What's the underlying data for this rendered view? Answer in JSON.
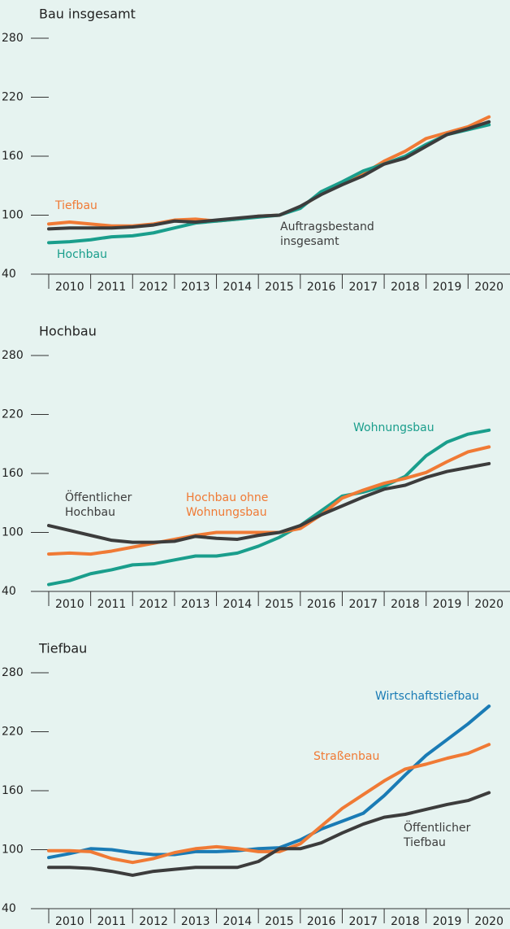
{
  "chart_data": [
    {
      "type": "line",
      "title": "Bau insgesamt",
      "x": [
        2010,
        2010.5,
        2011,
        2011.5,
        2012,
        2012.5,
        2013,
        2013.5,
        2014,
        2014.5,
        2015,
        2015.5,
        2016,
        2016.5,
        2017,
        2017.5,
        2018,
        2018.5,
        2019,
        2019.5,
        2020,
        2020.5
      ],
      "xlim": [
        2010,
        2021
      ],
      "xticks": [
        2010,
        2011,
        2012,
        2013,
        2014,
        2015,
        2016,
        2017,
        2018,
        2019,
        2020
      ],
      "ylim": [
        40,
        280
      ],
      "yticks": [
        40,
        100,
        160,
        220,
        280
      ],
      "series": [
        {
          "name": "Tiefbau",
          "color": "#f07a35",
          "values": [
            91,
            93,
            91,
            89,
            89,
            91,
            95,
            96,
            94,
            96,
            99,
            100,
            108,
            122,
            132,
            142,
            155,
            165,
            178,
            184,
            190,
            200
          ]
        },
        {
          "name": "Hochbau",
          "color": "#1a9e8c",
          "values": [
            72,
            73,
            75,
            78,
            79,
            82,
            87,
            92,
            94,
            96,
            98,
            100,
            107,
            124,
            134,
            145,
            152,
            160,
            172,
            182,
            187,
            192
          ]
        },
        {
          "name": "Auftragsbestand insgesamt",
          "color": "#3c3c3c",
          "values": [
            86,
            87,
            87,
            87,
            88,
            90,
            94,
            93,
            95,
            97,
            99,
            100,
            109,
            121,
            131,
            140,
            152,
            158,
            170,
            182,
            188,
            195
          ]
        }
      ]
    },
    {
      "type": "line",
      "title": "Hochbau",
      "x": [
        2010,
        2010.5,
        2011,
        2011.5,
        2012,
        2012.5,
        2013,
        2013.5,
        2014,
        2014.5,
        2015,
        2015.5,
        2016,
        2016.5,
        2017,
        2017.5,
        2018,
        2018.5,
        2019,
        2019.5,
        2020,
        2020.5
      ],
      "xlim": [
        2010,
        2021
      ],
      "xticks": [
        2010,
        2011,
        2012,
        2013,
        2014,
        2015,
        2016,
        2017,
        2018,
        2019,
        2020
      ],
      "ylim": [
        40,
        280
      ],
      "yticks": [
        40,
        100,
        160,
        220,
        280
      ],
      "series": [
        {
          "name": "Wohnungsbau",
          "color": "#1a9e8c",
          "values": [
            47,
            51,
            58,
            62,
            67,
            68,
            72,
            76,
            76,
            79,
            86,
            95,
            107,
            122,
            137,
            141,
            147,
            157,
            178,
            192,
            200,
            204
          ]
        },
        {
          "name": "Hochbau ohne Wohnungsbau",
          "color": "#f07a35",
          "values": [
            78,
            79,
            78,
            81,
            85,
            89,
            93,
            97,
            100,
            100,
            100,
            100,
            104,
            118,
            135,
            143,
            150,
            155,
            161,
            172,
            182,
            187
          ]
        },
        {
          "name": "Öffentlicher Hochbau",
          "color": "#3c3c3c",
          "values": [
            107,
            102,
            97,
            92,
            90,
            90,
            91,
            96,
            94,
            93,
            97,
            100,
            107,
            118,
            127,
            136,
            144,
            148,
            156,
            162,
            166,
            170
          ]
        }
      ]
    },
    {
      "type": "line",
      "title": "Tiefbau",
      "x": [
        2010,
        2010.5,
        2011,
        2011.5,
        2012,
        2012.5,
        2013,
        2013.5,
        2014,
        2014.5,
        2015,
        2015.5,
        2016,
        2016.5,
        2017,
        2017.5,
        2018,
        2018.5,
        2019,
        2019.5,
        2020,
        2020.5
      ],
      "xlim": [
        2010,
        2021
      ],
      "xticks": [
        2010,
        2011,
        2012,
        2013,
        2014,
        2015,
        2016,
        2017,
        2018,
        2019,
        2020
      ],
      "ylim": [
        40,
        280
      ],
      "yticks": [
        40,
        100,
        160,
        220,
        280
      ],
      "series": [
        {
          "name": "Wirtschaftstiefbau",
          "color": "#1a7bb5",
          "values": [
            92,
            96,
            101,
            100,
            97,
            95,
            95,
            98,
            98,
            99,
            101,
            102,
            110,
            121,
            129,
            137,
            155,
            176,
            196,
            212,
            228,
            246
          ]
        },
        {
          "name": "Straßenbau",
          "color": "#f07a35",
          "values": [
            99,
            99,
            98,
            91,
            87,
            91,
            97,
            101,
            103,
            101,
            98,
            98,
            106,
            124,
            142,
            156,
            170,
            182,
            187,
            193,
            198,
            207
          ]
        },
        {
          "name": "Öffentlicher Tiefbau",
          "color": "#3c3c3c",
          "values": [
            82,
            82,
            81,
            78,
            74,
            78,
            80,
            82,
            82,
            82,
            88,
            101,
            101,
            107,
            117,
            126,
            133,
            136,
            141,
            146,
            150,
            158
          ]
        }
      ]
    }
  ]
}
